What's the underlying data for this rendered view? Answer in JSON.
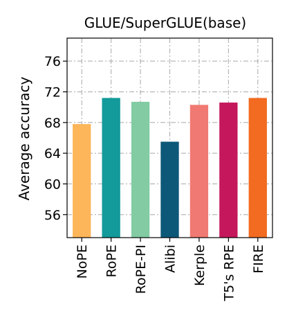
{
  "chart_data": {
    "type": "bar",
    "title": "GLUE/SuperGLUE(base)",
    "xlabel": "",
    "ylabel": "Average accuracy",
    "categories": [
      "NoPE",
      "RoPE",
      "RoPE-PI",
      "Alibi",
      "Kerple",
      "T5's RPE",
      "FIRE"
    ],
    "values": [
      67.8,
      71.2,
      70.7,
      65.5,
      70.3,
      70.6,
      71.2
    ],
    "colors": [
      "#FDB65A",
      "#139A9A",
      "#82CBA3",
      "#0D5878",
      "#F07A73",
      "#C5185C",
      "#F26B21"
    ],
    "ylim": [
      53,
      79
    ],
    "yticks": [
      56,
      60,
      64,
      68,
      72,
      76
    ],
    "grid": true,
    "grid_style": "dash-dot"
  }
}
